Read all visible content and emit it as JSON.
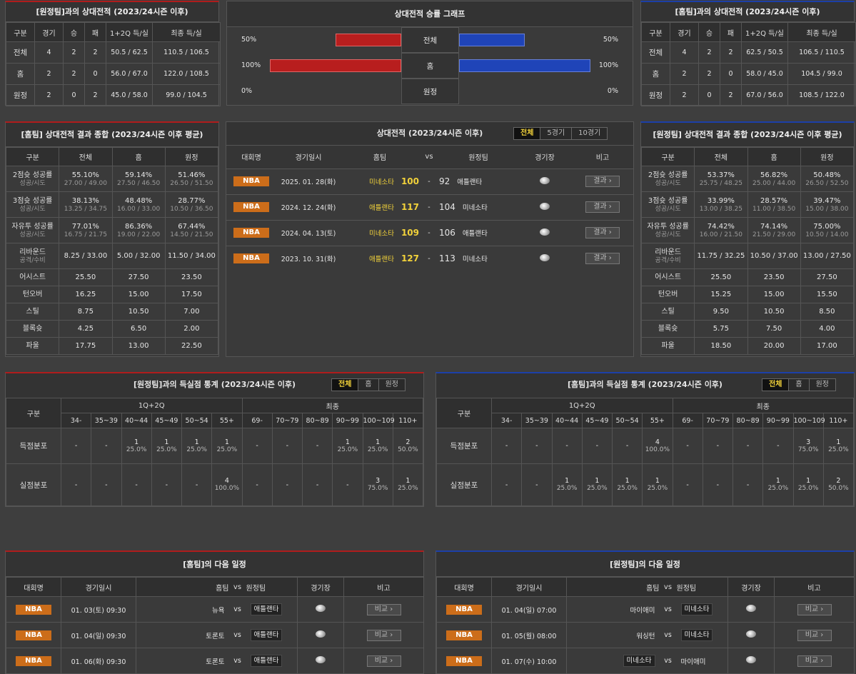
{
  "h2h_away": {
    "title": "[원정팀]과의 상대전적 (2023/24시즌 이후)",
    "headers": [
      "구분",
      "경기",
      "승",
      "패",
      "1+2Q 득/실",
      "최종 득/실"
    ],
    "rows": [
      [
        "전체",
        "4",
        "2",
        "2",
        "50.5 / 62.5",
        "110.5 / 106.5"
      ],
      [
        "홈",
        "2",
        "2",
        "0",
        "56.0 / 67.0",
        "122.0 / 108.5"
      ],
      [
        "원정",
        "2",
        "0",
        "2",
        "45.0 / 58.0",
        "99.0 / 104.5"
      ]
    ]
  },
  "h2h_graph": {
    "title": "상대전적 승률 그래프",
    "rows": [
      {
        "label": "전체",
        "left_text": "50%",
        "right_text": "50%",
        "left": 0.5,
        "right": 0.5
      },
      {
        "label": "홈",
        "left_text": "100%",
        "right_text": "100%",
        "left": 1.0,
        "right": 1.0
      },
      {
        "label": "원정",
        "left_text": "0%",
        "right_text": "0%",
        "left": 0,
        "right": 0
      }
    ]
  },
  "h2h_home": {
    "title": "[홈팀]과의 상대전적 (2023/24시즌 이후)",
    "headers": [
      "구분",
      "경기",
      "승",
      "패",
      "1+2Q 득/실",
      "최종 득/실"
    ],
    "rows": [
      [
        "전체",
        "4",
        "2",
        "2",
        "62.5 / 50.5",
        "106.5 / 110.5"
      ],
      [
        "홈",
        "2",
        "2",
        "0",
        "58.0 / 45.0",
        "104.5 / 99.0"
      ],
      [
        "원정",
        "2",
        "0",
        "2",
        "67.0 / 56.0",
        "108.5 / 122.0"
      ]
    ]
  },
  "summary_home": {
    "title": "[홈팀] 상대전적 결과 종합 (2023/24시즌 이후 평균)",
    "headers": [
      "구분",
      "전체",
      "홈",
      "원정"
    ],
    "rows": [
      {
        "label": "2점슛 성공률",
        "sub": "성공/시도",
        "vals": [
          [
            "55.10%",
            "27.00 / 49.00"
          ],
          [
            "59.14%",
            "27.50 / 46.50"
          ],
          [
            "51.46%",
            "26.50 / 51.50"
          ]
        ]
      },
      {
        "label": "3점슛 성공률",
        "sub": "성공/시도",
        "vals": [
          [
            "38.13%",
            "13.25 / 34.75"
          ],
          [
            "48.48%",
            "16.00 / 33.00"
          ],
          [
            "28.77%",
            "10.50 / 36.50"
          ]
        ]
      },
      {
        "label": "자유투 성공률",
        "sub": "성공/시도",
        "vals": [
          [
            "77.01%",
            "16.75 / 21.75"
          ],
          [
            "86.36%",
            "19.00 / 22.00"
          ],
          [
            "67.44%",
            "14.50 / 21.50"
          ]
        ]
      },
      {
        "label": "리바운드",
        "sub": "공격/수비",
        "vals": [
          [
            "8.25 / 33.00",
            ""
          ],
          [
            "5.00 / 32.00",
            ""
          ],
          [
            "11.50 / 34.00",
            ""
          ]
        ]
      },
      {
        "label": "어시스트",
        "sub": "",
        "vals": [
          [
            "25.50",
            ""
          ],
          [
            "27.50",
            ""
          ],
          [
            "23.50",
            ""
          ]
        ]
      },
      {
        "label": "턴오버",
        "sub": "",
        "vals": [
          [
            "16.25",
            ""
          ],
          [
            "15.00",
            ""
          ],
          [
            "17.50",
            ""
          ]
        ]
      },
      {
        "label": "스틸",
        "sub": "",
        "vals": [
          [
            "8.75",
            ""
          ],
          [
            "10.50",
            ""
          ],
          [
            "7.00",
            ""
          ]
        ]
      },
      {
        "label": "블록슛",
        "sub": "",
        "vals": [
          [
            "4.25",
            ""
          ],
          [
            "6.50",
            ""
          ],
          [
            "2.00",
            ""
          ]
        ]
      },
      {
        "label": "파울",
        "sub": "",
        "vals": [
          [
            "17.75",
            ""
          ],
          [
            "13.00",
            ""
          ],
          [
            "22.50",
            ""
          ]
        ]
      }
    ]
  },
  "summary_away": {
    "title": "[원정팀] 상대전적 결과 종합 (2023/24시즌 이후 평균)",
    "headers": [
      "구분",
      "전체",
      "홈",
      "원정"
    ],
    "rows": [
      {
        "label": "2점슛 성공률",
        "sub": "성공/시도",
        "vals": [
          [
            "53.37%",
            "25.75 / 48.25"
          ],
          [
            "56.82%",
            "25.00 / 44.00"
          ],
          [
            "50.48%",
            "26.50 / 52.50"
          ]
        ]
      },
      {
        "label": "3점슛 성공률",
        "sub": "성공/시도",
        "vals": [
          [
            "33.99%",
            "13.00 / 38.25"
          ],
          [
            "28.57%",
            "11.00 / 38.50"
          ],
          [
            "39.47%",
            "15.00 / 38.00"
          ]
        ]
      },
      {
        "label": "자유투 성공률",
        "sub": "성공/시도",
        "vals": [
          [
            "74.42%",
            "16.00 / 21.50"
          ],
          [
            "74.14%",
            "21.50 / 29.00"
          ],
          [
            "75.00%",
            "10.50 / 14.00"
          ]
        ]
      },
      {
        "label": "리바운드",
        "sub": "공격/수비",
        "vals": [
          [
            "11.75 / 32.25",
            ""
          ],
          [
            "10.50 / 37.00",
            ""
          ],
          [
            "13.00 / 27.50",
            ""
          ]
        ]
      },
      {
        "label": "어시스트",
        "sub": "",
        "vals": [
          [
            "25.50",
            ""
          ],
          [
            "23.50",
            ""
          ],
          [
            "27.50",
            ""
          ]
        ]
      },
      {
        "label": "턴오버",
        "sub": "",
        "vals": [
          [
            "15.25",
            ""
          ],
          [
            "15.00",
            ""
          ],
          [
            "15.50",
            ""
          ]
        ]
      },
      {
        "label": "스틸",
        "sub": "",
        "vals": [
          [
            "9.50",
            ""
          ],
          [
            "10.50",
            ""
          ],
          [
            "8.50",
            ""
          ]
        ]
      },
      {
        "label": "블록슛",
        "sub": "",
        "vals": [
          [
            "5.75",
            ""
          ],
          [
            "7.50",
            ""
          ],
          [
            "4.00",
            ""
          ]
        ]
      },
      {
        "label": "파울",
        "sub": "",
        "vals": [
          [
            "18.50",
            ""
          ],
          [
            "20.00",
            ""
          ],
          [
            "17.00",
            ""
          ]
        ]
      }
    ]
  },
  "records": {
    "title": "상대전적 (2023/24시즌 이후)",
    "tabs": [
      "전체",
      "5경기",
      "10경기"
    ],
    "headers": [
      "대회명",
      "경기일시",
      "홈팀",
      "vs",
      "원정팀",
      "경기장",
      "비고"
    ],
    "league": "NBA",
    "result_label": "결과",
    "rows": [
      {
        "date": "2025. 01. 28(화)",
        "home": "미네소타",
        "hs": "100",
        "as": "92",
        "away": "애틀랜타"
      },
      {
        "date": "2024. 12. 24(화)",
        "home": "애틀랜타",
        "hs": "117",
        "as": "104",
        "away": "미네소타"
      },
      {
        "date": "2024. 04. 13(토)",
        "home": "미네소타",
        "hs": "109",
        "as": "106",
        "away": "애틀랜타"
      },
      {
        "date": "2023. 10. 31(화)",
        "home": "애틀랜타",
        "hs": "127",
        "as": "113",
        "away": "미네소타"
      }
    ]
  },
  "dist_away": {
    "title": "[원정팀]과의 득실점 통계 (2023/24시즌 이후)",
    "tabs": [
      "전체",
      "홈",
      "원정"
    ],
    "group_label": "구분",
    "g1": "1Q+2Q",
    "g2": "최종",
    "cols": [
      "34-",
      "35~39",
      "40~44",
      "45~49",
      "50~54",
      "55+",
      "69-",
      "70~79",
      "80~89",
      "90~99",
      "100~109",
      "110+"
    ],
    "rows": [
      {
        "label": "득점분포",
        "cells": [
          [
            "-",
            ""
          ],
          [
            "-",
            ""
          ],
          [
            "1",
            "25.0%"
          ],
          [
            "1",
            "25.0%"
          ],
          [
            "1",
            "25.0%"
          ],
          [
            "1",
            "25.0%"
          ],
          [
            "-",
            ""
          ],
          [
            "-",
            ""
          ],
          [
            "-",
            ""
          ],
          [
            "1",
            "25.0%"
          ],
          [
            "1",
            "25.0%"
          ],
          [
            "2",
            "50.0%"
          ]
        ]
      },
      {
        "label": "실점분포",
        "cells": [
          [
            "-",
            ""
          ],
          [
            "-",
            ""
          ],
          [
            "-",
            ""
          ],
          [
            "-",
            ""
          ],
          [
            "-",
            ""
          ],
          [
            "4",
            "100.0%"
          ],
          [
            "-",
            ""
          ],
          [
            "-",
            ""
          ],
          [
            "-",
            ""
          ],
          [
            "-",
            ""
          ],
          [
            "3",
            "75.0%"
          ],
          [
            "1",
            "25.0%"
          ]
        ]
      }
    ]
  },
  "dist_home": {
    "title": "[홈팀]과의 득실점 통계 (2023/24시즌 이후)",
    "tabs": [
      "전체",
      "홈",
      "원정"
    ],
    "group_label": "구분",
    "g1": "1Q+2Q",
    "g2": "최종",
    "cols": [
      "34-",
      "35~39",
      "40~44",
      "45~49",
      "50~54",
      "55+",
      "69-",
      "70~79",
      "80~89",
      "90~99",
      "100~109",
      "110+"
    ],
    "rows": [
      {
        "label": "득점분포",
        "cells": [
          [
            "-",
            ""
          ],
          [
            "-",
            ""
          ],
          [
            "-",
            ""
          ],
          [
            "-",
            ""
          ],
          [
            "-",
            ""
          ],
          [
            "4",
            "100.0%"
          ],
          [
            "-",
            ""
          ],
          [
            "-",
            ""
          ],
          [
            "-",
            ""
          ],
          [
            "-",
            ""
          ],
          [
            "3",
            "75.0%"
          ],
          [
            "1",
            "25.0%"
          ]
        ]
      },
      {
        "label": "실점분포",
        "cells": [
          [
            "-",
            ""
          ],
          [
            "-",
            ""
          ],
          [
            "1",
            "25.0%"
          ],
          [
            "1",
            "25.0%"
          ],
          [
            "1",
            "25.0%"
          ],
          [
            "1",
            "25.0%"
          ],
          [
            "-",
            ""
          ],
          [
            "-",
            ""
          ],
          [
            "-",
            ""
          ],
          [
            "1",
            "25.0%"
          ],
          [
            "1",
            "25.0%"
          ],
          [
            "2",
            "50.0%"
          ]
        ]
      }
    ]
  },
  "next_home": {
    "title": "[홈팀]의 다음 일정",
    "headers": [
      "대회명",
      "경기일시",
      "홈팀",
      "vs",
      "원정팀",
      "경기장",
      "비고"
    ],
    "league": "NBA",
    "compare_label": "비교",
    "rows": [
      {
        "date": "01. 03(토) 09:30",
        "home": "뉴욕",
        "away": "애틀랜타",
        "hl": "away"
      },
      {
        "date": "01. 04(일) 09:30",
        "home": "토론토",
        "away": "애틀랜타",
        "hl": "away"
      },
      {
        "date": "01. 06(화) 09:30",
        "home": "토론토",
        "away": "애틀랜타",
        "hl": "away"
      }
    ]
  },
  "next_away": {
    "title": "[원정팀]의 다음 일정",
    "headers": [
      "대회명",
      "경기일시",
      "홈팀",
      "vs",
      "원정팀",
      "경기장",
      "비고"
    ],
    "league": "NBA",
    "compare_label": "비교",
    "rows": [
      {
        "date": "01. 04(일) 07:00",
        "home": "마이애미",
        "away": "미네소타",
        "hl": "away"
      },
      {
        "date": "01. 05(월) 08:00",
        "home": "워싱턴",
        "away": "미네소타",
        "hl": "away"
      },
      {
        "date": "01. 07(수) 10:00",
        "home": "미네소타",
        "away": "마이애미",
        "hl": "home"
      }
    ]
  },
  "colors": {
    "red": "#b81e1e",
    "blue": "#1f44b8",
    "accent": "#f2d23a",
    "nba": "#cc6d1a"
  }
}
